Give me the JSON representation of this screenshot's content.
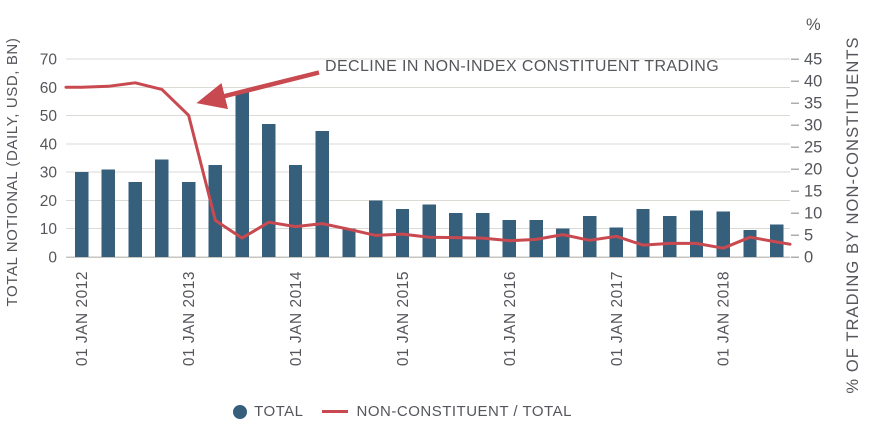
{
  "colors": {
    "bar": "#365F7C",
    "line": "#C8494F",
    "text": "#54565B",
    "gridline": "#DBDAD5",
    "axis_line": "#C6C5C0"
  },
  "chart_data": {
    "type": "bar",
    "subtype": "bar+line dual axis",
    "frequency": "quarterly",
    "x_start": "2012-Q1",
    "x_end": "2018-Q3",
    "x_tick_labels": [
      "01 JAN 2012",
      "01 JAN 2013",
      "01 JAN 2014",
      "01 JAN 2015",
      "01 JAN 2016",
      "01 JAN 2017",
      "01 JAN 2018"
    ],
    "x_tick_every_n_points": 4,
    "series": [
      {
        "name": "TOTAL",
        "type": "bar",
        "axis": "left",
        "color": "#365F7C",
        "values": [
          30,
          31,
          26.5,
          34.5,
          26.5,
          32.5,
          58.5,
          47,
          32.5,
          44.5,
          10,
          20,
          17,
          18.5,
          15.5,
          15.5,
          13,
          13,
          10,
          14.5,
          10.5,
          17,
          14.5,
          16.5,
          16,
          9.5,
          11.5
        ]
      },
      {
        "name": "NON-CONSTITUENT / TOTAL",
        "type": "line",
        "axis": "right",
        "color": "#C8494F",
        "values": [
          38.6,
          38.8,
          39.6,
          38.1,
          32.2,
          8.3,
          4.3,
          7.9,
          6.9,
          7.6,
          6.3,
          4.9,
          5.2,
          4.5,
          4.4,
          4.3,
          3.7,
          4.0,
          5.1,
          3.8,
          4.7,
          2.7,
          3.1,
          3.1,
          2.0,
          4.5,
          3.4
        ],
        "edge_left": 38.6,
        "edge_right": 2.9
      }
    ],
    "left_axis": {
      "label": "TOTAL NOTIONAL (DAILY, USD, BN)",
      "min": 0,
      "max": 70,
      "step": 10
    },
    "right_axis": {
      "label": "% OF TRADING BY NON-CONSTITUENTS",
      "unit": "%",
      "min": 0,
      "max": 45,
      "step": 5
    },
    "annotation": "DECLINE IN NON-INDEX CONSTITUENT TRADING",
    "grid": "horizontal only",
    "legend_position": "bottom center"
  }
}
